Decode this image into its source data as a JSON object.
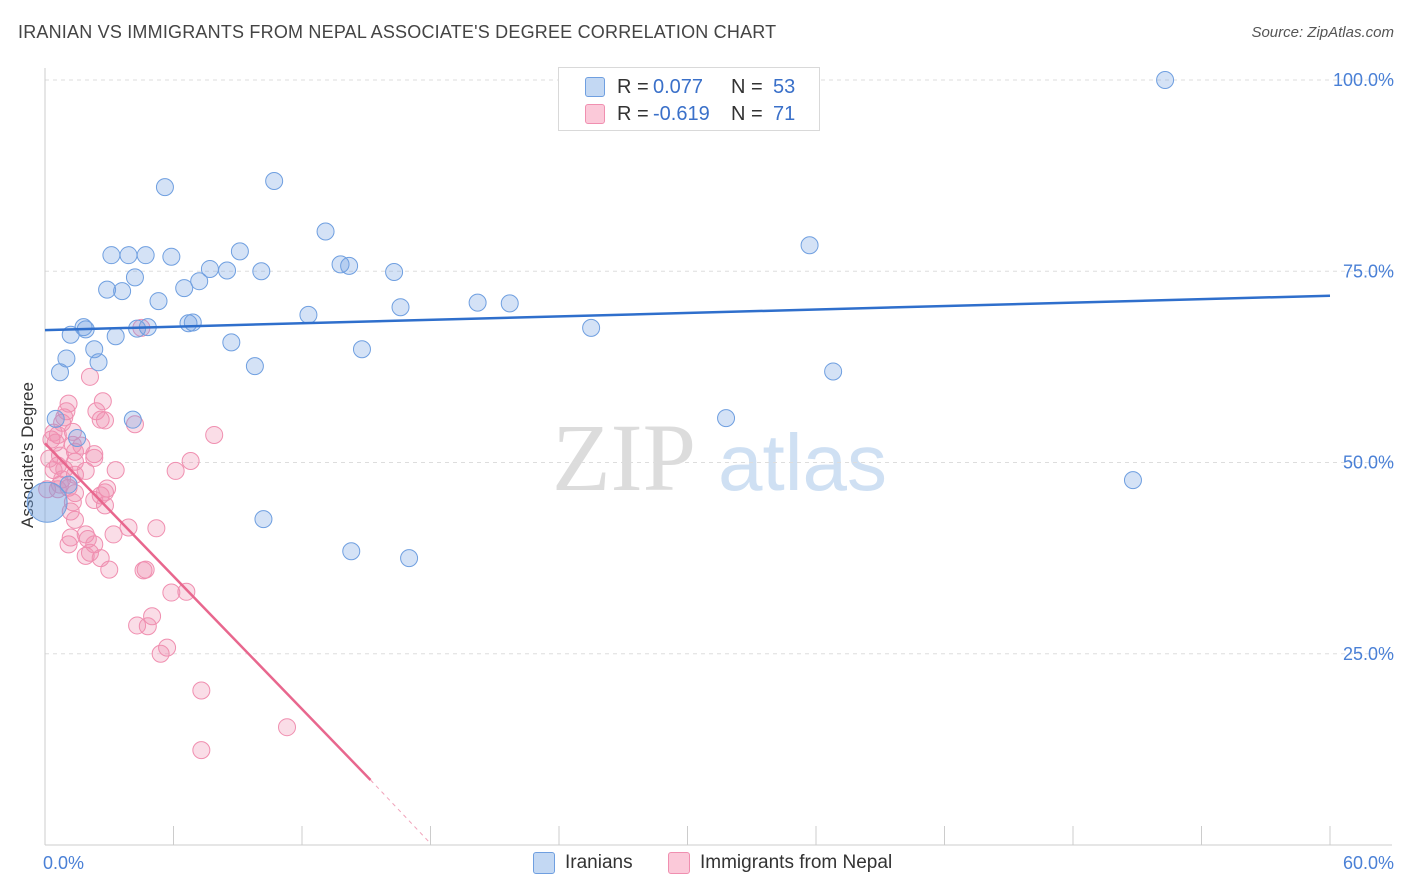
{
  "title": "IRANIAN VS IMMIGRANTS FROM NEPAL ASSOCIATE'S DEGREE CORRELATION CHART",
  "source": "Source: ZipAtlas.com",
  "watermark": {
    "zip": "ZIP",
    "atlas": "atlas"
  },
  "legend": {
    "items": [
      {
        "r_label": "R =",
        "r_value": "0.077",
        "n_label": "N =",
        "n_value": "53"
      },
      {
        "r_label": "R =",
        "r_value": "-0.619",
        "n_label": "N =",
        "n_value": "71"
      }
    ]
  },
  "bottom_legend": {
    "iranians": "Iranians",
    "nepal": "Immigrants from Nepal"
  },
  "chart_data": {
    "type": "scatter",
    "title": "IRANIAN VS IMMIGRANTS FROM NEPAL ASSOCIATE'S DEGREE CORRELATION CHART",
    "xlabel": "",
    "ylabel": "Associate's Degree",
    "xlim": [
      0,
      60
    ],
    "ylim": [
      0,
      100
    ],
    "x_tick_labels": [
      "0.0%",
      "60.0%"
    ],
    "y_ticks": [
      25,
      50,
      75,
      100
    ],
    "y_tick_labels": [
      "25.0%",
      "50.0%",
      "75.0%",
      "100.0%"
    ],
    "grid": true,
    "colors": {
      "iranians": "#6f9fe0",
      "iranians_line": "#2f6fcc",
      "nepal": "#f08fb0",
      "nepal_line": "#e8678e"
    },
    "series": [
      {
        "name": "Iranians",
        "r": 0.077,
        "n": 53,
        "trend": {
          "x": [
            0,
            60
          ],
          "y": [
            67.3,
            71.8
          ]
        },
        "points": [
          [
            52.3,
            100.0
          ],
          [
            10.7,
            86.8
          ],
          [
            5.6,
            86.0
          ],
          [
            13.1,
            80.2
          ],
          [
            35.7,
            78.4
          ],
          [
            3.1,
            77.1
          ],
          [
            3.9,
            77.1
          ],
          [
            4.7,
            77.1
          ],
          [
            5.9,
            76.9
          ],
          [
            9.1,
            77.6
          ],
          [
            7.7,
            75.3
          ],
          [
            8.5,
            75.1
          ],
          [
            10.1,
            75.0
          ],
          [
            13.8,
            75.9
          ],
          [
            14.2,
            75.7
          ],
          [
            16.3,
            74.9
          ],
          [
            4.2,
            74.2
          ],
          [
            7.2,
            73.7
          ],
          [
            2.9,
            72.6
          ],
          [
            3.6,
            72.4
          ],
          [
            6.5,
            72.8
          ],
          [
            5.3,
            71.1
          ],
          [
            16.6,
            70.3
          ],
          [
            20.2,
            70.9
          ],
          [
            21.7,
            70.8
          ],
          [
            12.3,
            69.3
          ],
          [
            6.7,
            68.2
          ],
          [
            6.9,
            68.3
          ],
          [
            1.8,
            67.7
          ],
          [
            4.3,
            67.5
          ],
          [
            4.8,
            67.7
          ],
          [
            25.5,
            67.6
          ],
          [
            1.2,
            66.7
          ],
          [
            1.9,
            67.4
          ],
          [
            3.3,
            66.5
          ],
          [
            8.7,
            65.7
          ],
          [
            2.3,
            64.8
          ],
          [
            14.8,
            64.8
          ],
          [
            1.0,
            63.6
          ],
          [
            2.5,
            63.1
          ],
          [
            9.8,
            62.6
          ],
          [
            0.7,
            61.8
          ],
          [
            36.8,
            61.9
          ],
          [
            4.1,
            55.6
          ],
          [
            31.8,
            55.8
          ],
          [
            0.5,
            55.7
          ],
          [
            1.5,
            53.2
          ],
          [
            50.8,
            47.7
          ],
          [
            1.1,
            47.1
          ],
          [
            10.2,
            42.6
          ],
          [
            14.3,
            38.4
          ],
          [
            17.0,
            37.5
          ],
          [
            0.1,
            44.8
          ]
        ]
      },
      {
        "name": "Immigrants from Nepal",
        "r": -0.619,
        "n": 71,
        "trend": {
          "x": [
            0,
            15.2
          ],
          "y": [
            52.5,
            8.5
          ]
        },
        "trend_dashed": {
          "x": [
            15.2,
            18.0
          ],
          "y": [
            8.5,
            0.2
          ]
        },
        "points": [
          [
            2.1,
            61.2
          ],
          [
            2.7,
            58.0
          ],
          [
            1.1,
            57.7
          ],
          [
            1.0,
            56.7
          ],
          [
            2.4,
            56.7
          ],
          [
            0.9,
            55.9
          ],
          [
            0.8,
            55.2
          ],
          [
            2.6,
            55.6
          ],
          [
            2.8,
            55.5
          ],
          [
            4.2,
            55.0
          ],
          [
            1.3,
            54.0
          ],
          [
            0.6,
            53.6
          ],
          [
            7.9,
            53.6
          ],
          [
            0.3,
            53.0
          ],
          [
            0.5,
            52.6
          ],
          [
            1.3,
            52.3
          ],
          [
            1.7,
            52.2
          ],
          [
            1.4,
            51.4
          ],
          [
            2.3,
            51.1
          ],
          [
            0.7,
            50.9
          ],
          [
            2.3,
            50.6
          ],
          [
            0.2,
            50.5
          ],
          [
            1.4,
            50.1
          ],
          [
            0.6,
            49.6
          ],
          [
            0.9,
            49.1
          ],
          [
            0.4,
            49.0
          ],
          [
            3.3,
            49.0
          ],
          [
            6.1,
            48.9
          ],
          [
            1.9,
            48.9
          ],
          [
            1.4,
            48.4
          ],
          [
            0.8,
            47.8
          ],
          [
            0.7,
            47.1
          ],
          [
            1.1,
            46.7
          ],
          [
            0.6,
            46.5
          ],
          [
            2.9,
            46.6
          ],
          [
            0.1,
            46.5
          ],
          [
            2.8,
            46.1
          ],
          [
            1.4,
            46.0
          ],
          [
            2.6,
            45.7
          ],
          [
            2.3,
            45.1
          ],
          [
            1.3,
            44.8
          ],
          [
            2.8,
            44.4
          ],
          [
            1.2,
            43.6
          ],
          [
            1.4,
            42.5
          ],
          [
            3.9,
            41.5
          ],
          [
            5.2,
            41.4
          ],
          [
            3.2,
            40.6
          ],
          [
            1.9,
            40.6
          ],
          [
            1.2,
            40.2
          ],
          [
            2.0,
            40.0
          ],
          [
            1.1,
            39.3
          ],
          [
            2.3,
            39.3
          ],
          [
            2.1,
            38.2
          ],
          [
            1.9,
            37.8
          ],
          [
            2.6,
            37.5
          ],
          [
            3.0,
            36.0
          ],
          [
            4.7,
            36.0
          ],
          [
            4.6,
            35.9
          ],
          [
            6.6,
            33.1
          ],
          [
            5.9,
            33.0
          ],
          [
            5.0,
            29.9
          ],
          [
            4.8,
            28.6
          ],
          [
            4.3,
            28.7
          ],
          [
            5.7,
            25.8
          ],
          [
            5.4,
            25.0
          ],
          [
            7.3,
            20.2
          ],
          [
            11.3,
            15.4
          ],
          [
            7.3,
            12.4
          ],
          [
            4.5,
            67.6
          ],
          [
            6.8,
            50.2
          ],
          [
            0.4,
            53.9
          ]
        ]
      }
    ]
  }
}
